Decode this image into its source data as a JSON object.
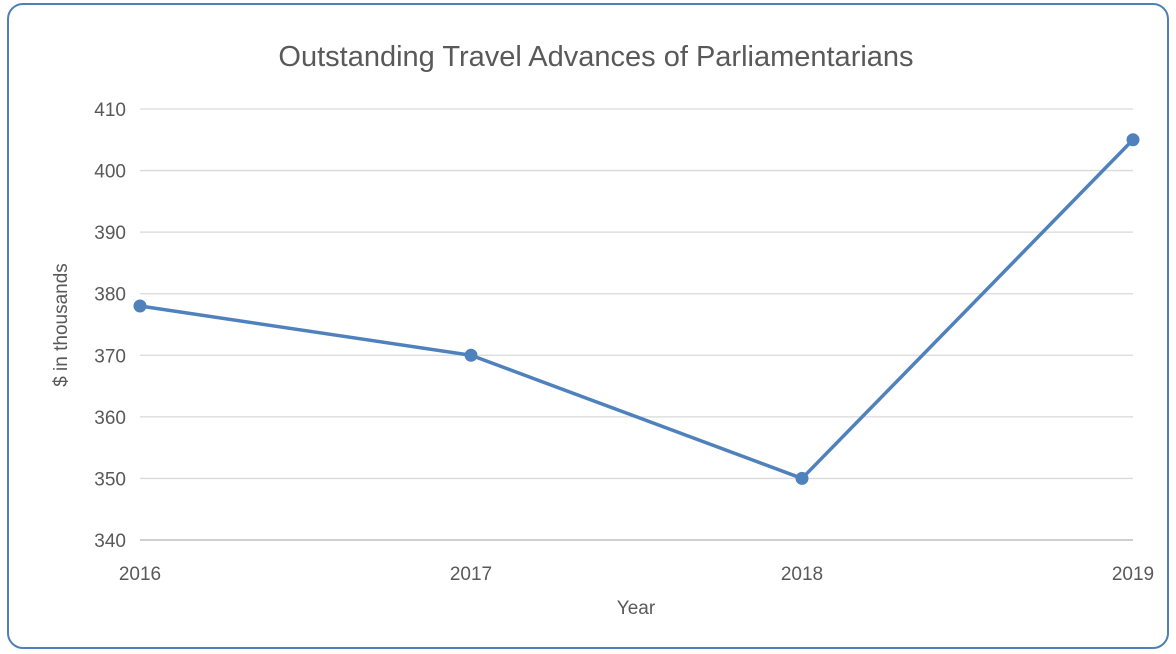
{
  "colors": {
    "series": "#4f81bd",
    "grid": "#d9d9d9",
    "axis": "#bfbfbf",
    "text": "#595959",
    "frame": "#4f7fb8"
  },
  "chart_data": {
    "type": "line",
    "title": "Outstanding Travel Advances of Parliamentarians",
    "xlabel": "Year",
    "ylabel": "$ in thousands",
    "categories": [
      "2016",
      "2017",
      "2018",
      "2019"
    ],
    "series": [
      {
        "values": [
          378,
          370,
          350,
          405
        ]
      }
    ],
    "ylim": [
      340,
      410
    ],
    "yticks": [
      "340",
      "350",
      "360",
      "370",
      "380",
      "390",
      "400",
      "410"
    ],
    "grid": true,
    "legend": "none",
    "markers": true
  }
}
